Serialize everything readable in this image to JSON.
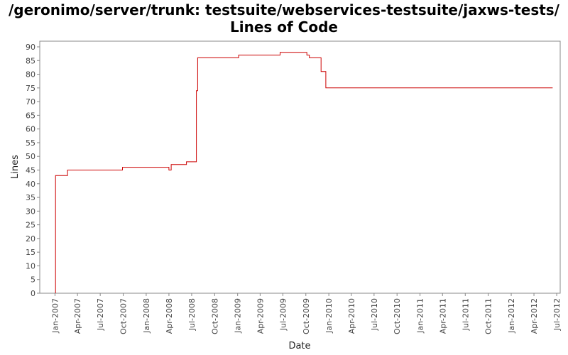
{
  "chart_data": {
    "type": "line",
    "title": "/geronimo/server/trunk: testsuite/webservices-testsuite/jaxws-tests/ Lines of Code",
    "xlabel": "Date",
    "ylabel": "Lines",
    "ylim": [
      0,
      90
    ],
    "xlim": [
      "2006-11-01",
      "2012-07-15"
    ],
    "y_ticks": [
      0,
      5,
      10,
      15,
      20,
      25,
      30,
      35,
      40,
      45,
      50,
      55,
      60,
      65,
      70,
      75,
      80,
      85,
      90
    ],
    "x_tick_labels": [
      "Jan-2007",
      "Apr-2007",
      "Jul-2007",
      "Oct-2007",
      "Jan-2008",
      "Apr-2008",
      "Jul-2008",
      "Oct-2008",
      "Jan-2009",
      "Apr-2009",
      "Jul-2009",
      "Oct-2009",
      "Jan-2010",
      "Apr-2010",
      "Jul-2010",
      "Oct-2010",
      "Jan-2011",
      "Apr-2011",
      "Jul-2011",
      "Oct-2011",
      "Jan-2012",
      "Apr-2012",
      "Jul-2012"
    ],
    "grid": false,
    "line_color": "#cc0000",
    "series": [
      {
        "x": [
          "2007-01-03",
          "2007-01-03",
          "2007-02-20",
          "2007-02-20",
          "2007-09-28",
          "2007-09-28",
          "2008-04-01",
          "2008-04-01",
          "2008-04-10",
          "2008-04-10",
          "2008-06-10",
          "2008-06-10",
          "2008-07-20",
          "2008-07-20",
          "2008-07-25",
          "2008-07-25",
          "2009-01-05",
          "2009-01-05",
          "2009-06-20",
          "2009-06-20",
          "2009-10-05",
          "2009-10-05",
          "2009-10-15",
          "2009-10-15",
          "2009-12-01",
          "2009-12-01",
          "2009-12-20",
          "2009-12-20",
          "2012-06-15"
        ],
        "y": [
          0,
          43,
          43,
          45,
          45,
          46,
          46,
          45,
          45,
          47,
          47,
          48,
          48,
          74,
          74,
          86,
          86,
          87,
          87,
          88,
          88,
          87,
          87,
          86,
          86,
          81,
          81,
          75,
          75
        ]
      }
    ]
  }
}
